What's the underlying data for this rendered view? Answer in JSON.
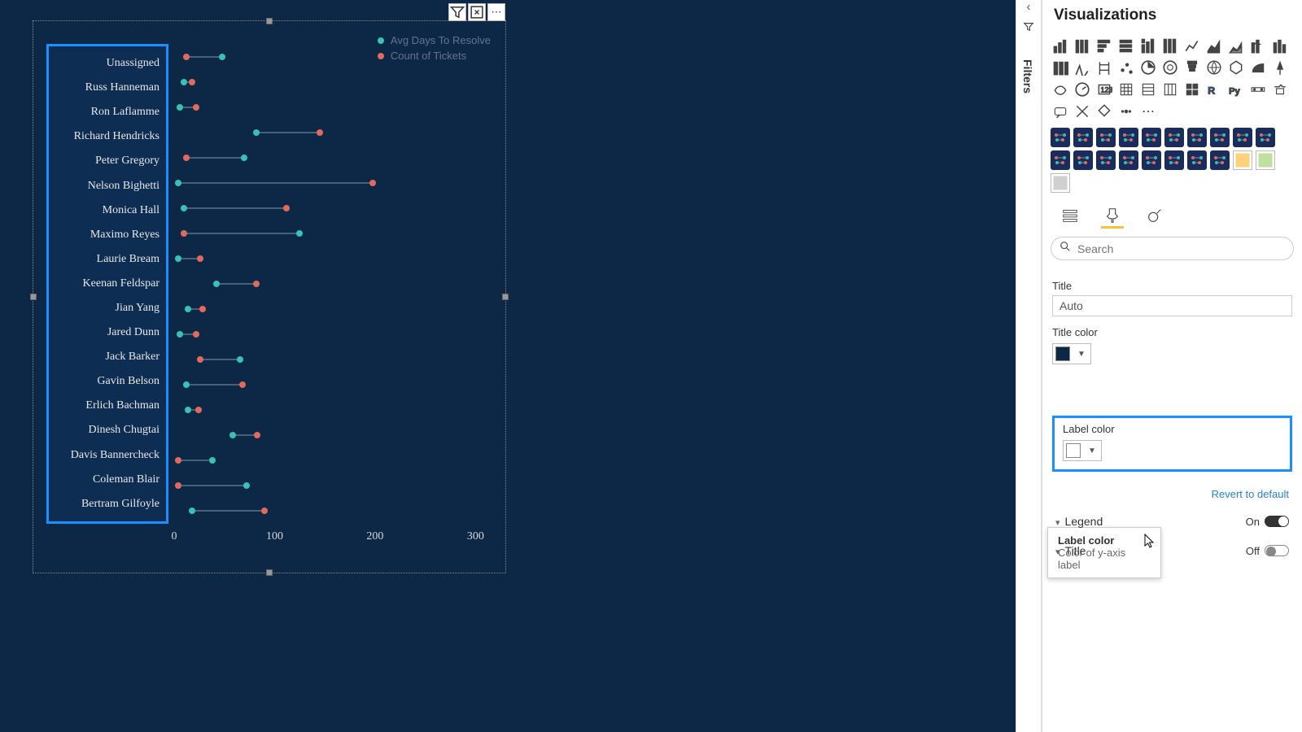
{
  "canvas": {
    "bg_color": "#0d2847"
  },
  "chart": {
    "type": "dumbbell",
    "legend": [
      {
        "label": "Avg Days To Resolve",
        "color": "#36c2b4"
      },
      {
        "label": "Count of Tickets",
        "color": "#e06b5d"
      }
    ],
    "xaxis": {
      "min": 0,
      "max": 320,
      "ticks": [
        0,
        100,
        200,
        300
      ]
    },
    "series_a_color": "#36c2b4",
    "series_b_color": "#e06b5d",
    "connector_color": "#48617a",
    "rows": [
      {
        "label": "Unassigned",
        "a": 48,
        "b": 12
      },
      {
        "label": "Russ Hanneman",
        "a": 10,
        "b": 18
      },
      {
        "label": "Ron Laflamme",
        "a": 6,
        "b": 22
      },
      {
        "label": "Richard Hendricks",
        "a": 82,
        "b": 145
      },
      {
        "label": "Peter Gregory",
        "a": 70,
        "b": 12
      },
      {
        "label": "Nelson Bighetti",
        "a": 4,
        "b": 198
      },
      {
        "label": "Monica Hall",
        "a": 10,
        "b": 112
      },
      {
        "label": "Maximo Reyes",
        "a": 125,
        "b": 10
      },
      {
        "label": "Laurie Bream",
        "a": 4,
        "b": 26
      },
      {
        "label": "Keenan Feldspar",
        "a": 42,
        "b": 82
      },
      {
        "label": "Jian Yang",
        "a": 14,
        "b": 28
      },
      {
        "label": "Jared Dunn",
        "a": 6,
        "b": 22
      },
      {
        "label": "Jack Barker",
        "a": 66,
        "b": 26
      },
      {
        "label": "Gavin Belson",
        "a": 12,
        "b": 68
      },
      {
        "label": "Erlich Bachman",
        "a": 14,
        "b": 24
      },
      {
        "label": "Dinesh Chugtai",
        "a": 58,
        "b": 83
      },
      {
        "label": "Davis Bannercheck",
        "a": 38,
        "b": 4
      },
      {
        "label": "Coleman Blair",
        "a": 72,
        "b": 4
      },
      {
        "label": "Bertram Gilfoyle",
        "a": 18,
        "b": 90
      }
    ],
    "ylabel_highlight_color": "#1a8fff"
  },
  "filters_strip": {
    "label": "Filters"
  },
  "viz_pane": {
    "title": "Visualizations",
    "search_placeholder": "Search",
    "title_field": {
      "label": "Title",
      "value": "Auto"
    },
    "title_color": {
      "label": "Title color",
      "swatch": "#0d2847"
    },
    "tooltip": {
      "title": "Label color",
      "subtitle": "Color of y-axis label"
    },
    "label_color": {
      "label": "Label color",
      "swatch": "#ffffff"
    },
    "revert": "Revert to default",
    "legend_section": {
      "label": "Legend",
      "state_text": "On",
      "on": true
    },
    "title_section": {
      "label": "Title",
      "state_text": "Off",
      "on": false
    }
  }
}
